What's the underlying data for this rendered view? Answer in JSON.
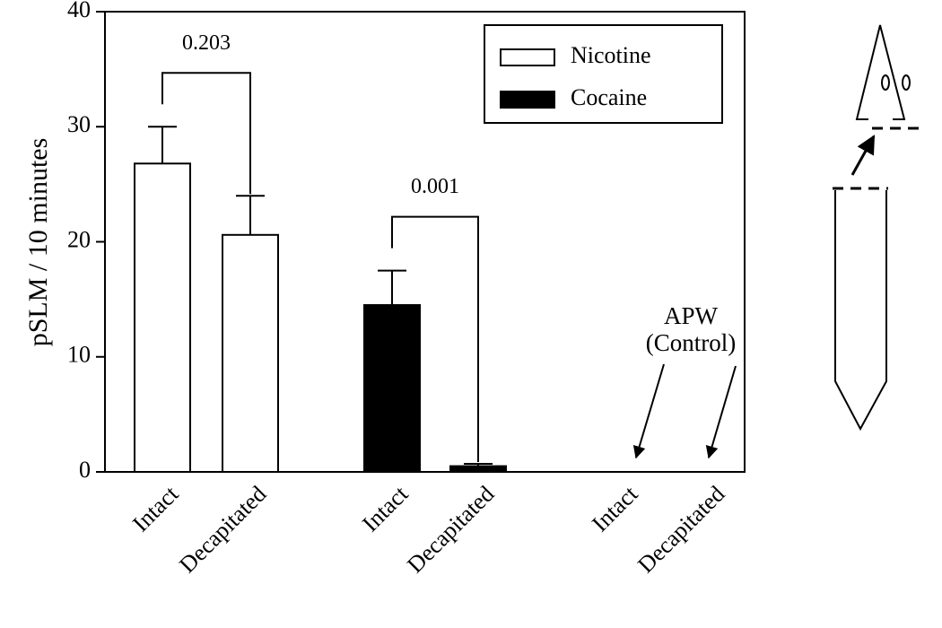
{
  "chart_data": {
    "type": "bar",
    "y_label": "pSLM / 10 minutes",
    "categories": [
      "Intact",
      "Decapitated",
      "Intact",
      "Decapitated",
      "Intact",
      "Decapitated"
    ],
    "series": [
      {
        "name": "Nicotine",
        "color": "#ffffff",
        "values": [
          26.8,
          20.6,
          null,
          null,
          null,
          null
        ],
        "errors": [
          3.2,
          3.4,
          null,
          null,
          null,
          null
        ]
      },
      {
        "name": "Cocaine",
        "color": "#000000",
        "values": [
          null,
          null,
          14.5,
          0.5,
          null,
          null
        ],
        "errors": [
          null,
          null,
          3.0,
          0.2,
          null,
          null
        ]
      }
    ],
    "comparisons": [
      "0.203",
      "0.001"
    ],
    "annotation": [
      "APW",
      "(Control)"
    ],
    "ylim": [
      0,
      40
    ],
    "yticks": [
      0,
      10,
      20,
      30,
      40
    ],
    "legend": "upper right"
  }
}
